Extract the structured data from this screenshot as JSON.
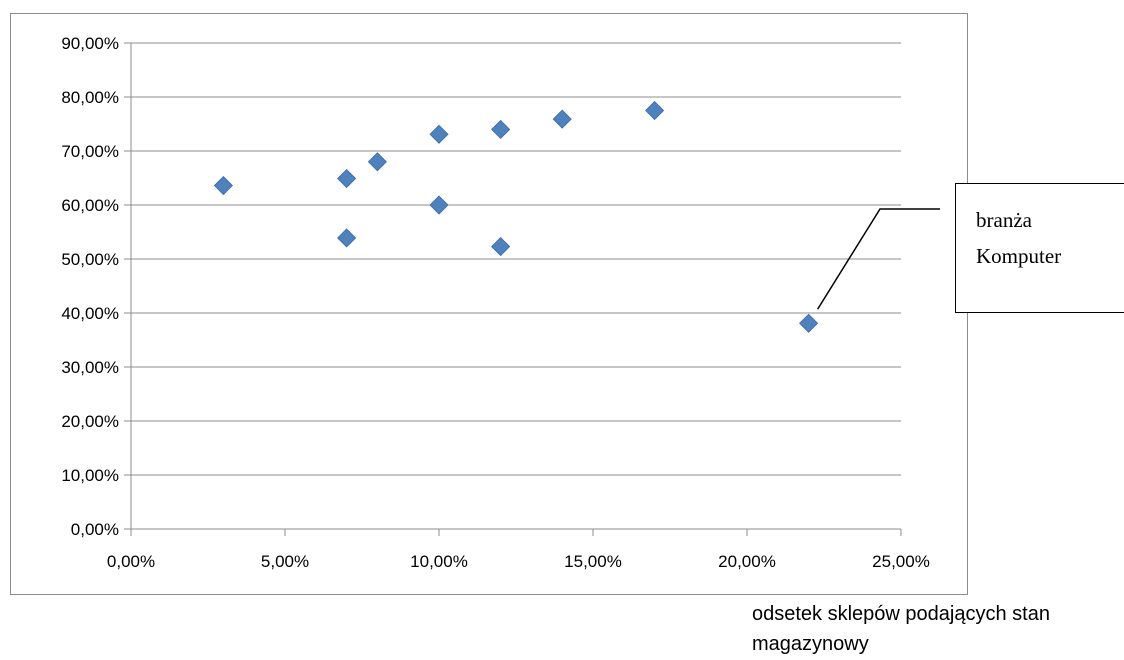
{
  "chart_data": {
    "type": "scatter",
    "title": "",
    "xlabel": "odsetek sklepów podających stan magazynowy",
    "ylabel": "",
    "xlim": [
      0,
      0.25
    ],
    "ylim": [
      0,
      0.9
    ],
    "grid": "horizontal",
    "marker": "diamond",
    "marker_color": "#4f81bd",
    "x_ticks": [
      "0,00%",
      "5,00%",
      "10,00%",
      "15,00%",
      "20,00%",
      "25,00%"
    ],
    "y_ticks": [
      "0,00%",
      "10,00%",
      "20,00%",
      "30,00%",
      "40,00%",
      "50,00%",
      "60,00%",
      "70,00%",
      "80,00%",
      "90,00%"
    ],
    "points": [
      {
        "x": 0.03,
        "y": 0.636
      },
      {
        "x": 0.07,
        "y": 0.649
      },
      {
        "x": 0.07,
        "y": 0.539
      },
      {
        "x": 0.08,
        "y": 0.68
      },
      {
        "x": 0.1,
        "y": 0.731
      },
      {
        "x": 0.1,
        "y": 0.6
      },
      {
        "x": 0.12,
        "y": 0.74
      },
      {
        "x": 0.12,
        "y": 0.523
      },
      {
        "x": 0.14,
        "y": 0.759
      },
      {
        "x": 0.17,
        "y": 0.775
      },
      {
        "x": 0.22,
        "y": 0.381
      }
    ],
    "annotations": [
      {
        "text": "branża Komputer",
        "x": 0.22,
        "y": 0.381
      }
    ]
  }
}
